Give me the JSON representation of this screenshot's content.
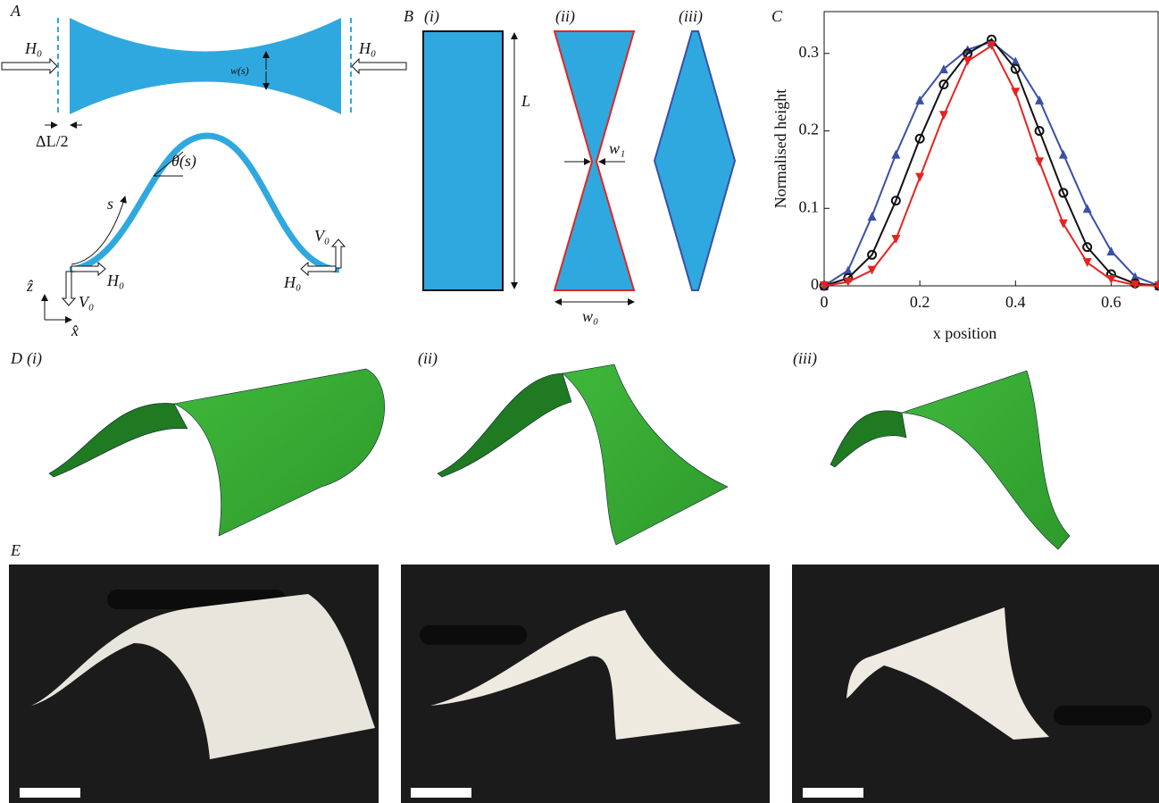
{
  "panel_a": {
    "label": "A",
    "labels": [
      "H₀",
      "H₀",
      "w(s)",
      "ΔL/2",
      "θ(s)",
      "s",
      "V₀",
      "H₀",
      "V₀",
      "H₀",
      "ẑ",
      "x̂"
    ]
  },
  "panel_b": {
    "label": "B",
    "subpanels": [
      "(i)",
      "(ii)",
      "(iii)"
    ],
    "labels": [
      "L",
      "w₁",
      "w₀"
    ]
  },
  "panel_c": {
    "label": "C"
  },
  "panel_d": {
    "label": "D",
    "subpanels": [
      "(i)",
      "(ii)",
      "(iii)"
    ]
  },
  "panel_e": {
    "label": "E"
  },
  "chart_data": {
    "type": "scatter",
    "ylabel": "Normalised height",
    "xlabel": "x position",
    "xlim": [
      0,
      0.7
    ],
    "ylim": [
      0,
      0.354
    ],
    "xticks": [
      0,
      0.2,
      0.4,
      0.6
    ],
    "yticks": [
      0,
      0.1,
      0.2,
      0.3
    ],
    "x": [
      0,
      0.05,
      0.1,
      0.15,
      0.2,
      0.25,
      0.3,
      0.35,
      0.4,
      0.45,
      0.5,
      0.55,
      0.6,
      0.65,
      0.7
    ],
    "series": [
      {
        "color": "#3a4fa8",
        "marker": "triangle-up",
        "values": [
          0,
          0.02,
          0.09,
          0.17,
          0.24,
          0.28,
          0.305,
          0.315,
          0.29,
          0.24,
          0.17,
          0.1,
          0.045,
          0.012,
          0
        ]
      },
      {
        "color": "#111111",
        "marker": "circle",
        "values": [
          0,
          0.01,
          0.04,
          0.11,
          0.19,
          0.26,
          0.3,
          0.318,
          0.28,
          0.2,
          0.12,
          0.05,
          0.015,
          0.003,
          0
        ]
      },
      {
        "color": "#e52421",
        "marker": "triangle-down",
        "values": [
          0,
          0.005,
          0.02,
          0.06,
          0.14,
          0.22,
          0.29,
          0.31,
          0.25,
          0.16,
          0.08,
          0.03,
          0.008,
          0.001,
          0
        ]
      }
    ]
  }
}
